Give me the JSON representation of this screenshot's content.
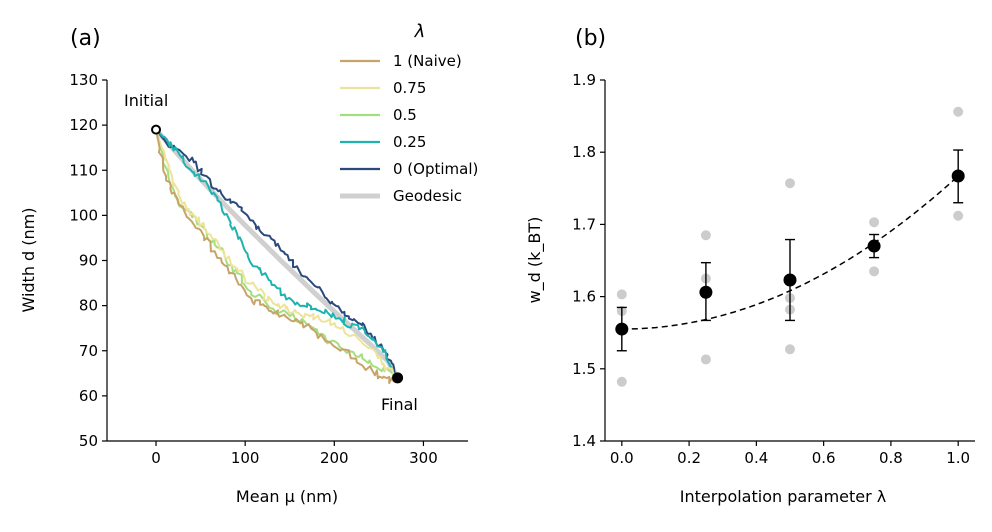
{
  "chart_data": [
    {
      "panel": "(a)",
      "type": "line",
      "xlabel": "Mean μ (nm)",
      "ylabel": "Width d (nm)",
      "xlim": [
        -55,
        350
      ],
      "ylim": [
        50,
        130
      ],
      "xticks": [
        0,
        100,
        200,
        300
      ],
      "yticks": [
        50,
        60,
        70,
        80,
        90,
        100,
        110,
        120,
        130
      ],
      "legend_title": "λ",
      "legend_position": "right of panel",
      "annotations": [
        {
          "text": "Initial",
          "x": 0,
          "y": 119
        },
        {
          "text": "Final",
          "x": 271,
          "y": 64
        }
      ],
      "endpoints": {
        "initial": [
          0,
          119
        ],
        "final": [
          271,
          64
        ]
      },
      "series": [
        {
          "name": "Geodesic",
          "color": "#d0d0d0",
          "x": [
            0,
            20,
            40,
            60,
            80,
            100,
            120,
            140,
            160,
            180,
            200,
            220,
            240,
            260,
            271
          ],
          "y": [
            119,
            114.5,
            110.1,
            105.9,
            101.8,
            97.8,
            93.9,
            90.0,
            86.2,
            82.4,
            78.7,
            75.1,
            71.5,
            67.7,
            64
          ]
        },
        {
          "name": "0 (Optimal)",
          "color": "#2b4a7b",
          "x": [
            0,
            10,
            25,
            40,
            55,
            70,
            85,
            100,
            115,
            130,
            145,
            160,
            175,
            190,
            205,
            220,
            235,
            250,
            262,
            271
          ],
          "y": [
            119,
            116.5,
            114.5,
            112.5,
            108.5,
            105.5,
            103,
            100.5,
            97,
            94.5,
            91.5,
            88,
            85,
            82,
            79.5,
            77,
            75,
            71.5,
            67.5,
            64
          ]
        },
        {
          "name": "0.25",
          "color": "#1fb3b0",
          "x": [
            0,
            10,
            25,
            40,
            55,
            70,
            85,
            95,
            110,
            125,
            140,
            155,
            170,
            185,
            200,
            215,
            230,
            245,
            258,
            271
          ],
          "y": [
            119,
            117,
            114,
            110,
            107,
            103,
            98,
            94,
            89.5,
            86,
            83,
            81,
            80,
            79,
            78,
            76,
            74.5,
            72,
            69,
            64
          ]
        },
        {
          "name": "0.5",
          "color": "#a3e07d",
          "x": [
            0,
            8,
            18,
            30,
            45,
            60,
            75,
            90,
            105,
            120,
            140,
            160,
            180,
            200,
            220,
            240,
            255,
            265,
            271
          ],
          "y": [
            119,
            113,
            106,
            101.5,
            99,
            95.5,
            91.5,
            87.5,
            83.5,
            81,
            78.5,
            77,
            74,
            71.5,
            69.5,
            67.5,
            66,
            64.5,
            64
          ]
        },
        {
          "name": "0.75",
          "color": "#ede39a",
          "x": [
            0,
            8,
            18,
            30,
            45,
            60,
            75,
            90,
            105,
            120,
            135,
            150,
            165,
            180,
            200,
            220,
            240,
            255,
            271
          ],
          "y": [
            119,
            114,
            108,
            103,
            99.5,
            96,
            92,
            88.5,
            85,
            82.5,
            80.5,
            79,
            78,
            77.5,
            76,
            73.5,
            70,
            67,
            64
          ]
        },
        {
          "name": "1 (Naive)",
          "color": "#c7a46a",
          "x": [
            0,
            5,
            12,
            22,
            35,
            50,
            65,
            80,
            95,
            110,
            125,
            140,
            160,
            180,
            200,
            220,
            240,
            255,
            265,
            271
          ],
          "y": [
            119,
            114,
            108,
            104,
            100,
            96.5,
            92,
            88.5,
            84.5,
            81,
            79.5,
            78,
            76.5,
            74,
            71,
            69,
            66,
            64,
            63,
            64
          ]
        }
      ]
    },
    {
      "panel": "(b)",
      "type": "scatter",
      "xlabel": "Interpolation parameter λ",
      "ylabel": "w_d (k_BT)",
      "xlim": [
        -0.05,
        1.05
      ],
      "ylim": [
        1.4,
        1.9
      ],
      "xticks": [
        0.0,
        0.2,
        0.4,
        0.6,
        0.8,
        1.0
      ],
      "yticks": [
        1.4,
        1.5,
        1.6,
        1.7,
        1.8,
        1.9
      ],
      "means": {
        "x": [
          0.0,
          0.25,
          0.5,
          0.75,
          1.0
        ],
        "y": [
          1.555,
          1.606,
          1.623,
          1.67,
          1.767
        ],
        "err_low": [
          1.525,
          1.567,
          1.567,
          1.654,
          1.73
        ],
        "err_high": [
          1.585,
          1.647,
          1.679,
          1.686,
          1.803
        ],
        "color": "#000000"
      },
      "samples": {
        "color": "#cccccc",
        "points": [
          [
            0.0,
            1.603
          ],
          [
            0.0,
            1.58
          ],
          [
            0.0,
            1.555
          ],
          [
            0.0,
            1.482
          ],
          [
            0.25,
            1.685
          ],
          [
            0.25,
            1.625
          ],
          [
            0.25,
            1.605
          ],
          [
            0.25,
            1.513
          ],
          [
            0.5,
            1.757
          ],
          [
            0.5,
            1.598
          ],
          [
            0.5,
            1.582
          ],
          [
            0.5,
            1.527
          ],
          [
            0.75,
            1.703
          ],
          [
            0.75,
            1.669
          ],
          [
            0.75,
            1.635
          ],
          [
            1.0,
            1.856
          ],
          [
            1.0,
            1.767
          ],
          [
            1.0,
            1.712
          ]
        ]
      },
      "fit": {
        "style": "dashed",
        "color": "#000000",
        "model": "quadratic",
        "a": 1.555,
        "b": 0.0,
        "c": 0.212
      }
    }
  ],
  "legend_entries": [
    {
      "label": "1 (Naive)",
      "color": "#c7a46a"
    },
    {
      "label": "0.75",
      "color": "#ede39a"
    },
    {
      "label": "0.5",
      "color": "#a3e07d"
    },
    {
      "label": "0.25",
      "color": "#1fb3b0"
    },
    {
      "label": "0 (Optimal)",
      "color": "#2b4a7b"
    },
    {
      "label": "Geodesic",
      "color": "#d0d0d0"
    }
  ]
}
